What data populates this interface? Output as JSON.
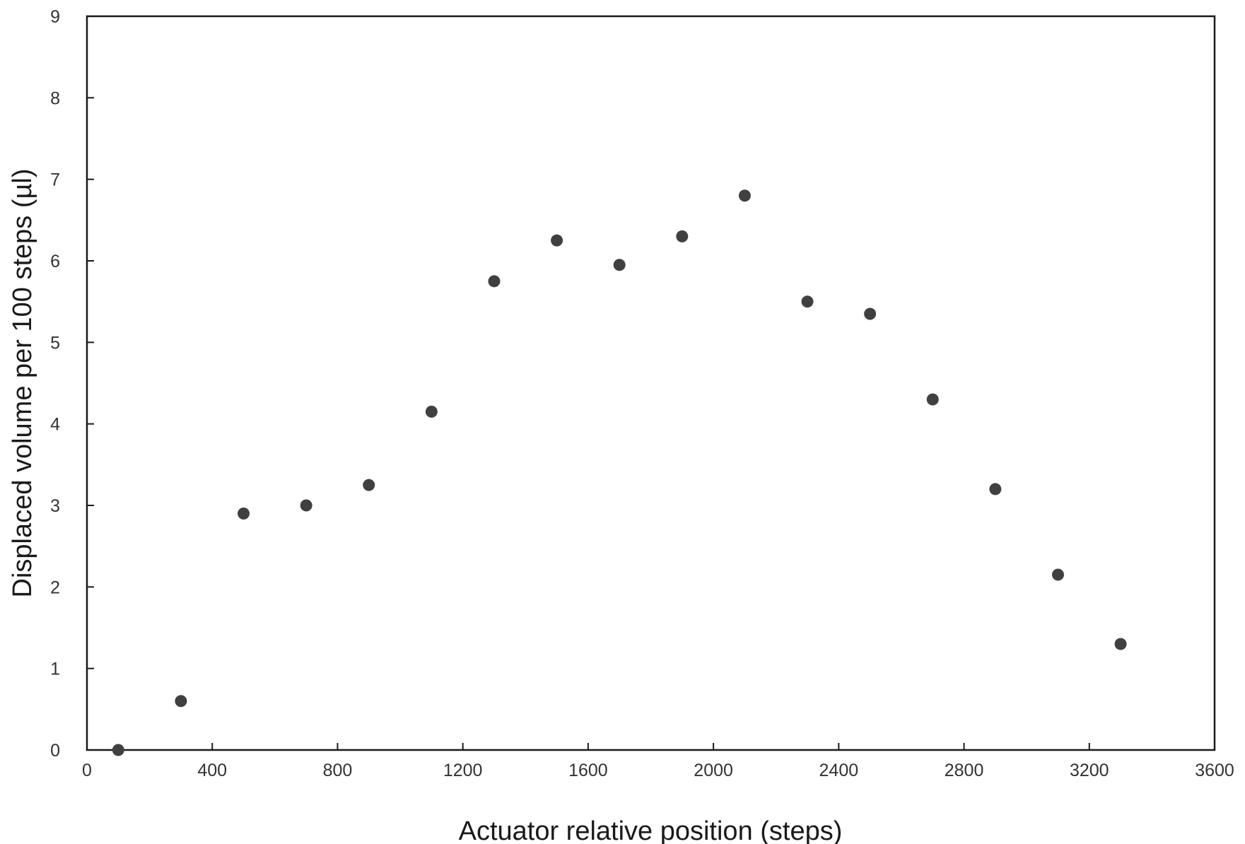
{
  "chart_data": {
    "type": "scatter",
    "title": "",
    "xlabel": "Actuator relative position (steps)",
    "ylabel": "Displaced volume per 100 steps (µl)",
    "xlim": [
      0,
      3600
    ],
    "ylim": [
      0,
      9
    ],
    "x_ticks": [
      "0",
      "400",
      "800",
      "1200",
      "1600",
      "2000",
      "2400",
      "2800",
      "3200",
      "3600"
    ],
    "y_ticks": [
      "0",
      "1",
      "2",
      "3",
      "4",
      "5",
      "6",
      "7",
      "8",
      "9"
    ],
    "grid": false,
    "legend": "none",
    "marker_color": "#404040",
    "series": [
      {
        "x": [
          100,
          300,
          500,
          700,
          900,
          1100,
          1300,
          1500,
          1700,
          1900,
          2100,
          2300,
          2500,
          2700,
          2900,
          3100,
          3300
        ],
        "y": [
          0.0,
          0.6,
          2.9,
          3.0,
          3.25,
          4.15,
          5.75,
          6.25,
          5.95,
          6.3,
          6.8,
          5.5,
          5.35,
          4.3,
          3.2,
          2.15,
          1.3
        ]
      }
    ]
  }
}
